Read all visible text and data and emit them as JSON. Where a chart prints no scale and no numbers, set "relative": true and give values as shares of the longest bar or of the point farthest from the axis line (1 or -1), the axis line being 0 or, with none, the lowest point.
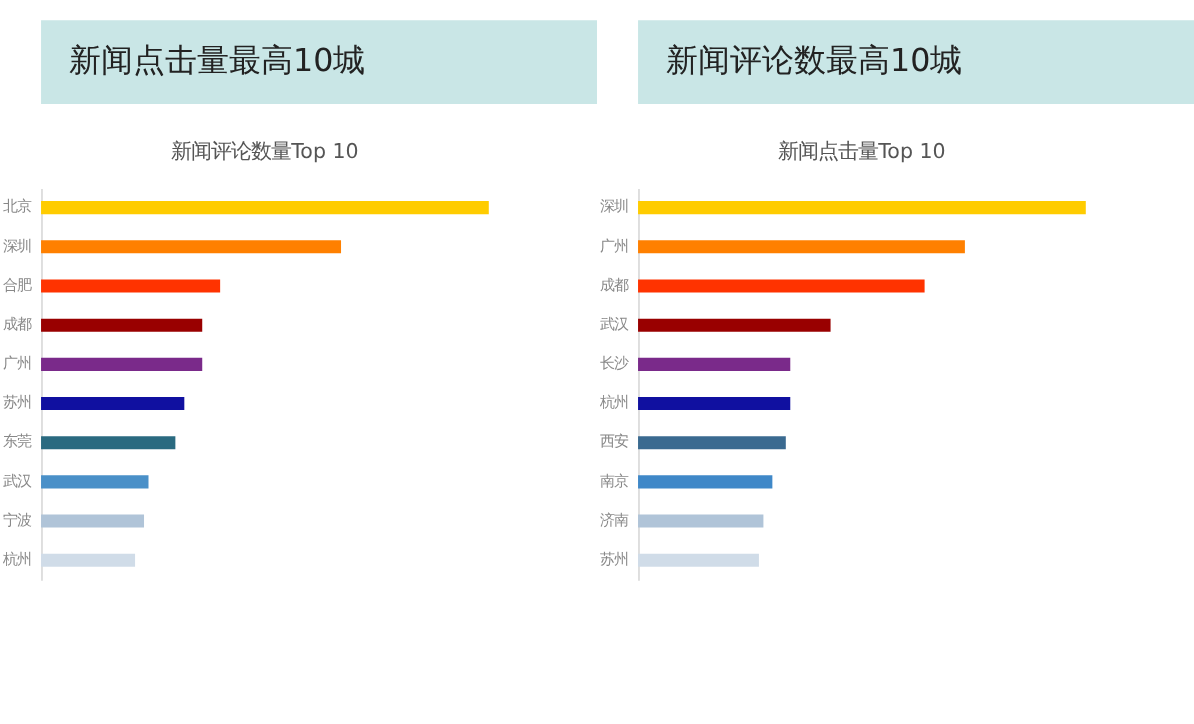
{
  "chart_data": [
    {
      "type": "bar",
      "orientation": "horizontal",
      "relative": true,
      "title": "新闻点击量最高10城",
      "subtitle": "新闻评论数量Top 10",
      "categories": [
        "北京",
        "深圳",
        "合肥",
        "成都",
        "广州",
        "苏州",
        "东莞",
        "武汉",
        "宁波",
        "杭州"
      ],
      "values": [
        1,
        0.67,
        0.4,
        0.36,
        0.36,
        0.32,
        0.3,
        0.24,
        0.23,
        0.21
      ],
      "colors": [
        "#ffcc00",
        "#ff8000",
        "#ff3300",
        "#990000",
        "#7a2a8a",
        "#1010a0",
        "#2a6a80",
        "#4a90c8",
        "#b0c4d8",
        "#d0dce8"
      ]
    },
    {
      "type": "bar",
      "orientation": "horizontal",
      "relative": true,
      "title": "新闻评论数最高10城",
      "subtitle": "新闻点击量Top 10",
      "categories": [
        "深圳",
        "广州",
        "成都",
        "武汉",
        "长沙",
        "杭州",
        "西安",
        "南京",
        "济南",
        "苏州"
      ],
      "values": [
        1,
        0.73,
        0.64,
        0.43,
        0.34,
        0.34,
        0.33,
        0.3,
        0.28,
        0.27
      ],
      "colors": [
        "#ffcc00",
        "#ff8000",
        "#ff3300",
        "#990000",
        "#7a2a8a",
        "#1010a0",
        "#3a6a90",
        "#3f88c8",
        "#b0c4d8",
        "#d0dce8"
      ]
    }
  ]
}
